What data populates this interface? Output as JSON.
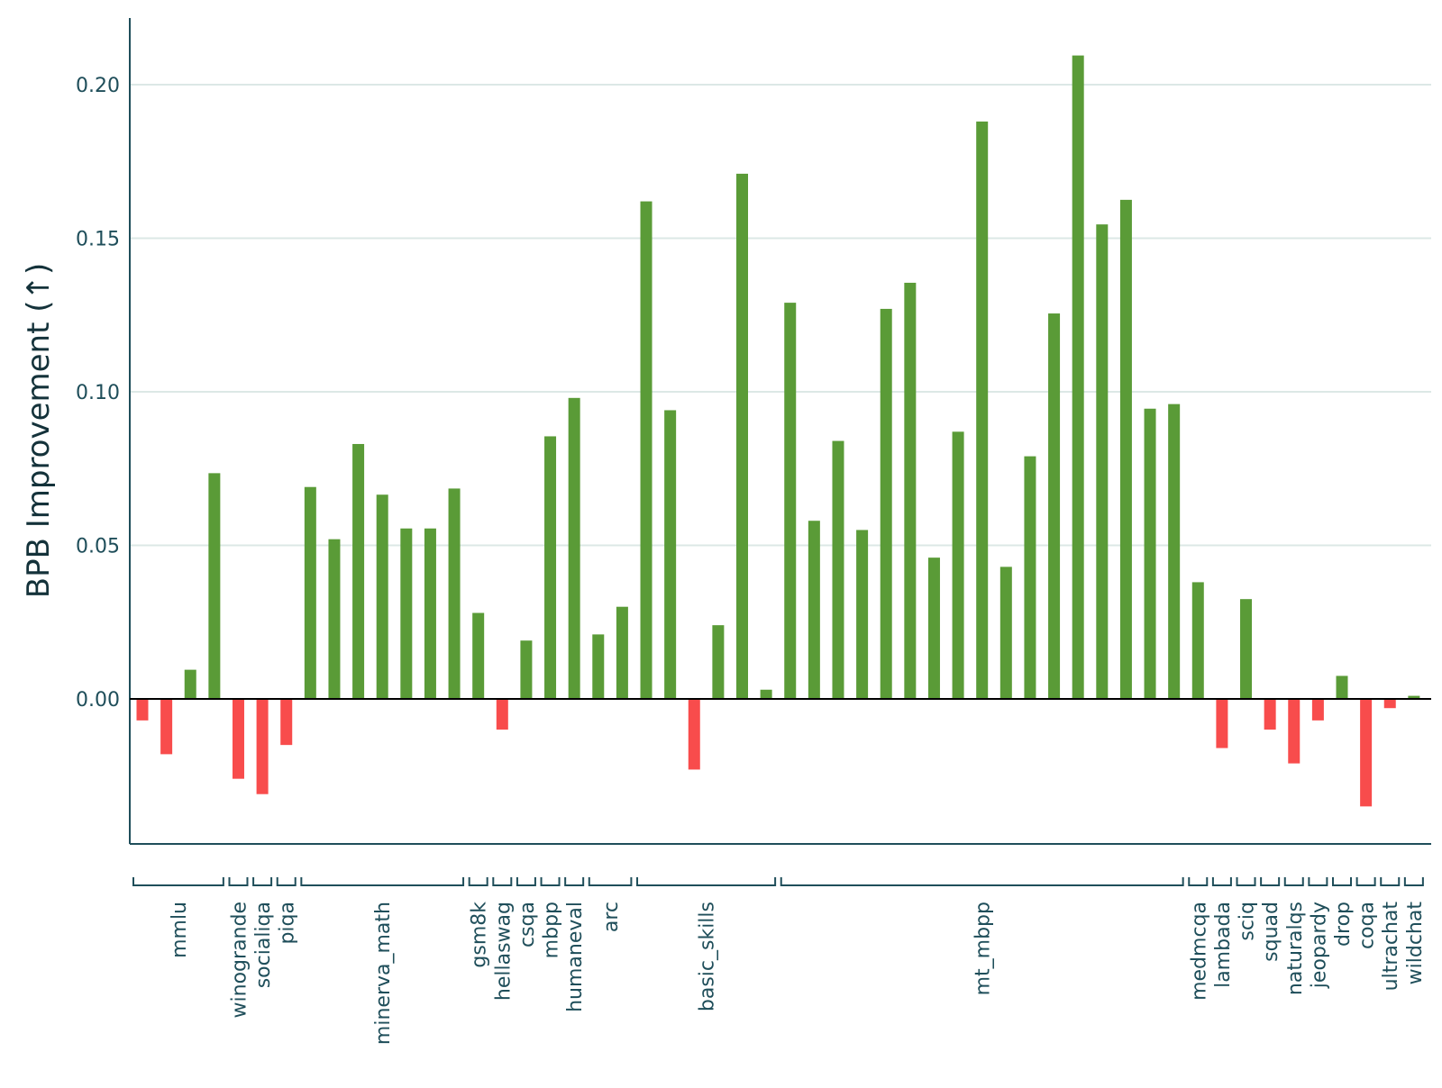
{
  "chart_data": {
    "type": "bar",
    "title": "",
    "xlabel": "",
    "ylabel": "BPB Improvement (↑)",
    "ylim": [
      -0.047,
      0.222
    ],
    "yticks": [
      0.0,
      0.05,
      0.1,
      0.15,
      0.2
    ],
    "ytick_labels": [
      "0.00",
      "0.05",
      "0.10",
      "0.15",
      "0.20"
    ],
    "grid": true,
    "colors": {
      "positive": "#5a9b37",
      "negative": "#f84c4c",
      "grid": "#dce8e6",
      "axis": "#1f4e5a",
      "zero_line": "#000000",
      "text": "#1f4e5a"
    },
    "values": [
      -0.007,
      -0.018,
      0.0095,
      0.0735,
      -0.026,
      -0.031,
      -0.015,
      0.069,
      0.052,
      0.083,
      0.0665,
      0.0555,
      0.0555,
      0.0685,
      0.028,
      -0.01,
      0.019,
      0.0855,
      0.098,
      0.021,
      0.03,
      0.162,
      0.094,
      -0.023,
      0.024,
      0.171,
      0.003,
      0.129,
      0.058,
      0.084,
      0.055,
      0.127,
      0.1355,
      0.046,
      0.087,
      0.188,
      0.043,
      0.079,
      0.1255,
      0.2095,
      0.1545,
      0.1625,
      0.0945,
      0.096,
      0.038,
      -0.016,
      0.0325,
      -0.01,
      -0.021,
      -0.007,
      0.0075,
      -0.035,
      -0.003,
      0.001
    ],
    "groups": [
      {
        "label": "mmlu",
        "start": 0,
        "end": 3
      },
      {
        "label": "winogrande",
        "start": 4,
        "end": 4
      },
      {
        "label": "socialiqa",
        "start": 5,
        "end": 5
      },
      {
        "label": "piqa",
        "start": 6,
        "end": 6
      },
      {
        "label": "minerva_math",
        "start": 7,
        "end": 13
      },
      {
        "label": "gsm8k",
        "start": 14,
        "end": 14
      },
      {
        "label": "hellaswag",
        "start": 15,
        "end": 15
      },
      {
        "label": "csqa",
        "start": 16,
        "end": 16
      },
      {
        "label": "mbpp",
        "start": 17,
        "end": 17
      },
      {
        "label": "humaneval",
        "start": 18,
        "end": 18
      },
      {
        "label": "arc",
        "start": 19,
        "end": 20
      },
      {
        "label": "basic_skills",
        "start": 21,
        "end": 26
      },
      {
        "label": "mt_mbpp",
        "start": 27,
        "end": 43
      },
      {
        "label": "medmcqa",
        "start": 44,
        "end": 44
      },
      {
        "label": "lambada",
        "start": 45,
        "end": 45
      },
      {
        "label": "sciq",
        "start": 46,
        "end": 46
      },
      {
        "label": "squad",
        "start": 47,
        "end": 47
      },
      {
        "label": "naturalqs",
        "start": 48,
        "end": 48
      },
      {
        "label": "jeopardy",
        "start": 49,
        "end": 49
      },
      {
        "label": "drop",
        "start": 50,
        "end": 50
      },
      {
        "label": "coqa",
        "start": 51,
        "end": 51
      },
      {
        "label": "ultrachat",
        "start": 52,
        "end": 52
      },
      {
        "label": "wildchat",
        "start": 53,
        "end": 53
      }
    ]
  }
}
